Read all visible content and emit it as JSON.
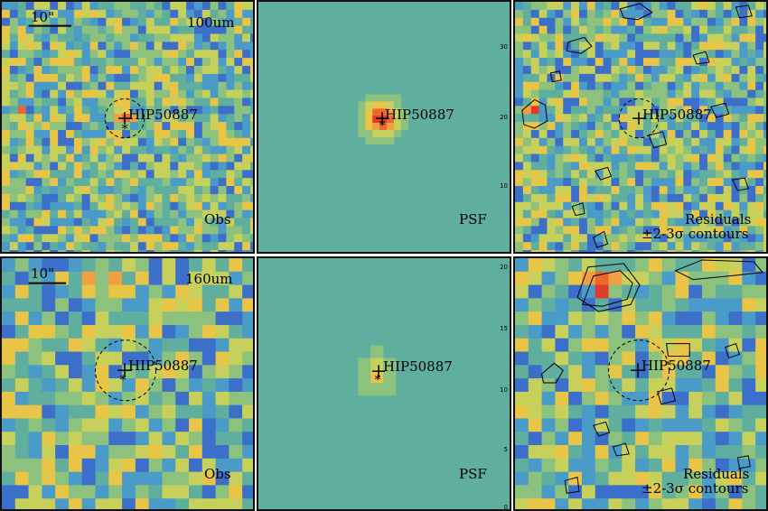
{
  "figure": {
    "target_name": "HIP50887",
    "scale_bar_label": "10\"",
    "panels": [
      {
        "id": "obs-100",
        "band": "100um",
        "kind_label": "Obs",
        "kind": "obs"
      },
      {
        "id": "psf-100",
        "band": "",
        "kind_label": "PSF",
        "kind": "psf"
      },
      {
        "id": "res-100",
        "band": "",
        "kind_label": "Residuals",
        "sub_label": "±2-3σ contours",
        "kind": "res"
      },
      {
        "id": "obs-160",
        "band": "160um",
        "kind_label": "Obs",
        "kind": "obs"
      },
      {
        "id": "psf-160",
        "band": "",
        "kind_label": "PSF",
        "kind": "psf"
      },
      {
        "id": "res-160",
        "band": "",
        "kind_label": "Residuals",
        "sub_label": "±2-3σ contours",
        "kind": "res"
      }
    ],
    "psf_top_ticks": [
      "30",
      "20",
      "10"
    ],
    "psf_bottom_ticks": [
      "20",
      "15",
      "10",
      "5",
      "0"
    ],
    "colors": {
      "background_mid": "#5fae9e",
      "blue": "#3b6fc9",
      "purple": "#6a2a8c",
      "yellow": "#d8d24a",
      "orange": "#f0a040",
      "red": "#e23a2a"
    }
  }
}
